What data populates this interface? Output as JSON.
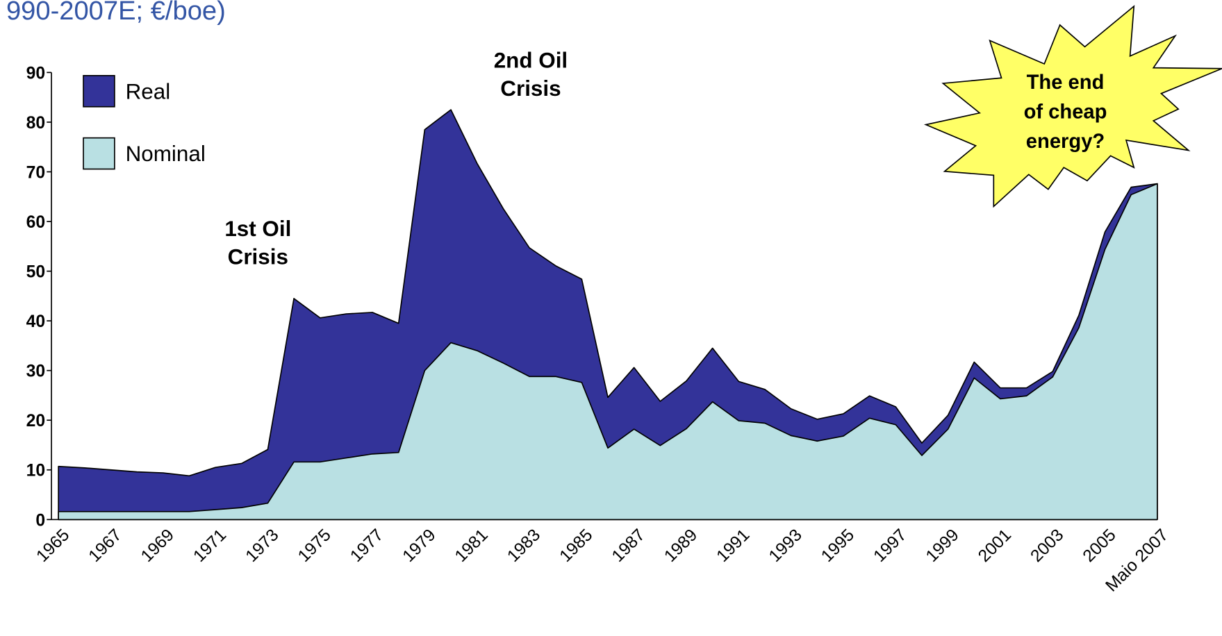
{
  "chart_data": {
    "type": "area",
    "title": "990-2007E; €/boe)",
    "categories": [
      "1965",
      null,
      "1967",
      null,
      "1969",
      null,
      "1971",
      null,
      "1973",
      null,
      "1975",
      null,
      "1977",
      null,
      "1979",
      null,
      "1981",
      null,
      "1983",
      null,
      "1985",
      null,
      "1987",
      null,
      "1989",
      null,
      "1991",
      null,
      "1993",
      null,
      "1995",
      null,
      "1997",
      null,
      "1999",
      null,
      "2001",
      null,
      "2003",
      null,
      "2005",
      null,
      "Maio 2007"
    ],
    "series": [
      {
        "name": "Real",
        "color": "#333399",
        "values": [
          10.7,
          10.4,
          10.0,
          9.6,
          9.4,
          8.8,
          10.5,
          11.3,
          14.1,
          44.5,
          40.6,
          41.4,
          41.7,
          39.5,
          78.5,
          82.5,
          71.7,
          62.6,
          54.7,
          51.1,
          48.4,
          24.6,
          30.6,
          23.8,
          27.9,
          34.5,
          27.8,
          26.2,
          22.3,
          20.2,
          21.3,
          24.9,
          22.7,
          15.4,
          21.0,
          31.7,
          26.5,
          26.5,
          29.8,
          41.1,
          57.9,
          66.9,
          67.6
        ]
      },
      {
        "name": "Nominal",
        "color": "#b9e0e3",
        "values": [
          1.6,
          1.6,
          1.6,
          1.6,
          1.6,
          1.6,
          2.0,
          2.4,
          3.3,
          11.6,
          11.6,
          12.4,
          13.2,
          13.5,
          30.0,
          35.6,
          34.0,
          31.5,
          28.8,
          28.8,
          27.6,
          14.4,
          18.2,
          14.9,
          18.3,
          23.7,
          19.9,
          19.4,
          16.9,
          15.8,
          16.8,
          20.4,
          19.1,
          12.9,
          18.2,
          28.5,
          24.3,
          24.9,
          28.7,
          38.6,
          54.4,
          65.4,
          67.6
        ]
      }
    ],
    "ylim": [
      0,
      90
    ],
    "yticks": [
      0,
      10,
      20,
      30,
      40,
      50,
      60,
      70,
      80,
      90
    ],
    "legend": "top-left",
    "annotations": [
      {
        "lines": [
          "1st  Oil",
          "Crisis"
        ]
      },
      {
        "lines": [
          "2nd Oil",
          "Crisis"
        ]
      },
      {
        "lines": [
          "The end",
          "of cheap",
          "energy?"
        ]
      }
    ]
  }
}
